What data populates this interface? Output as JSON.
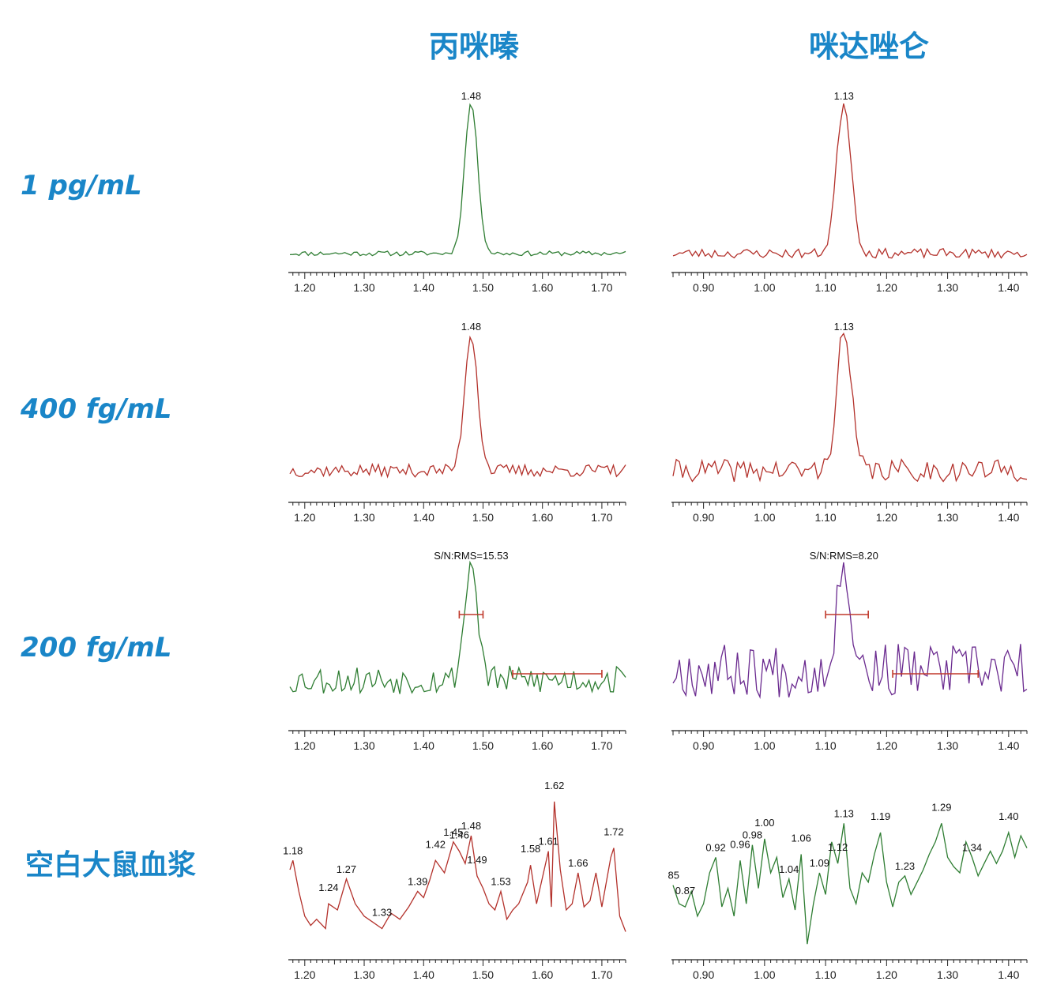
{
  "column_titles": [
    "丙咪嗪",
    "咪达唑仑"
  ],
  "row_labels": [
    "1 pg/mL",
    "400 fg/mL",
    "200 fg/mL",
    "空白大鼠血浆"
  ],
  "chart_data": [
    {
      "type": "line",
      "row": "1 pg/mL",
      "compound": "丙咪嗪",
      "color": "#2e7d32",
      "xlim": [
        1.175,
        1.74
      ],
      "xticks": [
        1.2,
        1.3,
        1.4,
        1.5,
        1.6,
        1.7
      ],
      "xtick_labels": [
        "1.20",
        "1.30",
        "1.40",
        "1.50",
        "1.60",
        "1.70"
      ],
      "peak": {
        "x": 1.48,
        "width": 0.011,
        "noise": 0.015,
        "baseline": 0.06,
        "seed": 11
      },
      "annotations": [
        {
          "text": "1.48",
          "x": 1.48
        }
      ]
    },
    {
      "type": "line",
      "row": "1 pg/mL",
      "compound": "咪达唑仑",
      "color": "#b3312b",
      "xlim": [
        0.85,
        1.43
      ],
      "xticks": [
        0.9,
        1.0,
        1.1,
        1.2,
        1.3,
        1.4
      ],
      "xtick_labels": [
        "0.90",
        "1.00",
        "1.10",
        "1.20",
        "1.30",
        "1.40"
      ],
      "peak": {
        "x": 1.13,
        "width": 0.012,
        "noise": 0.03,
        "baseline": 0.06,
        "seed": 23
      },
      "annotations": [
        {
          "text": "1.13",
          "x": 1.13
        }
      ]
    },
    {
      "type": "line",
      "row": "400 fg/mL",
      "compound": "丙咪嗪",
      "color": "#b3312b",
      "xlim": [
        1.175,
        1.74
      ],
      "xticks": [
        1.2,
        1.3,
        1.4,
        1.5,
        1.6,
        1.7
      ],
      "xtick_labels": [
        "1.20",
        "1.30",
        "1.40",
        "1.50",
        "1.60",
        "1.70"
      ],
      "peak": {
        "x": 1.48,
        "width": 0.011,
        "noise": 0.04,
        "baseline": 0.14,
        "seed": 37
      },
      "annotations": [
        {
          "text": "1.48",
          "x": 1.48
        }
      ]
    },
    {
      "type": "line",
      "row": "400 fg/mL",
      "compound": "咪达唑仑",
      "color": "#b3312b",
      "xlim": [
        0.85,
        1.43
      ],
      "xticks": [
        0.9,
        1.0,
        1.1,
        1.2,
        1.3,
        1.4
      ],
      "xtick_labels": [
        "0.90",
        "1.00",
        "1.10",
        "1.20",
        "1.30",
        "1.40"
      ],
      "peak": {
        "x": 1.13,
        "width": 0.012,
        "noise": 0.07,
        "baseline": 0.14,
        "seed": 41
      },
      "annotations": [
        {
          "text": "1.13",
          "x": 1.13
        }
      ]
    },
    {
      "type": "line",
      "row": "200 fg/mL",
      "compound": "丙咪嗪",
      "color": "#2e7d32",
      "xlim": [
        1.175,
        1.74
      ],
      "xticks": [
        1.2,
        1.3,
        1.4,
        1.5,
        1.6,
        1.7
      ],
      "xtick_labels": [
        "1.20",
        "1.30",
        "1.40",
        "1.50",
        "1.60",
        "1.70"
      ],
      "peak": {
        "x": 1.48,
        "width": 0.011,
        "noise": 0.09,
        "baseline": 0.26,
        "seed": 53
      },
      "annotations": [
        {
          "text": "S/N:RMS=15.53",
          "x": 1.48
        }
      ],
      "signal_range": [
        1.46,
        1.5
      ],
      "noise_range": [
        1.55,
        1.7
      ]
    },
    {
      "type": "line",
      "row": "200 fg/mL",
      "compound": "咪达唑仑",
      "color": "#6a2a8f",
      "xlim": [
        0.85,
        1.43
      ],
      "xticks": [
        0.9,
        1.0,
        1.1,
        1.2,
        1.3,
        1.4
      ],
      "xtick_labels": [
        "0.90",
        "1.00",
        "1.10",
        "1.20",
        "1.30",
        "1.40"
      ],
      "peak": {
        "x": 1.13,
        "width": 0.012,
        "noise": 0.17,
        "baseline": 0.32,
        "seed": 67
      },
      "annotations": [
        {
          "text": "S/N:RMS=8.20",
          "x": 1.13
        }
      ],
      "signal_range": [
        1.1,
        1.17
      ],
      "noise_range": [
        1.21,
        1.35
      ]
    },
    {
      "type": "line",
      "row": "空白大鼠血浆",
      "compound": "丙咪嗪",
      "color": "#b3312b",
      "xlim": [
        1.175,
        1.74
      ],
      "xticks": [
        1.2,
        1.3,
        1.4,
        1.5,
        1.6,
        1.7
      ],
      "xtick_labels": [
        "1.20",
        "1.30",
        "1.40",
        "1.50",
        "1.60",
        "1.70"
      ],
      "points": [
        [
          1.175,
          0.52
        ],
        [
          1.18,
          0.58
        ],
        [
          1.19,
          0.38
        ],
        [
          1.2,
          0.22
        ],
        [
          1.21,
          0.16
        ],
        [
          1.22,
          0.2
        ],
        [
          1.235,
          0.14
        ],
        [
          1.24,
          0.3
        ],
        [
          1.255,
          0.26
        ],
        [
          1.27,
          0.46
        ],
        [
          1.285,
          0.3
        ],
        [
          1.3,
          0.22
        ],
        [
          1.315,
          0.18
        ],
        [
          1.33,
          0.14
        ],
        [
          1.345,
          0.24
        ],
        [
          1.36,
          0.2
        ],
        [
          1.375,
          0.28
        ],
        [
          1.39,
          0.38
        ],
        [
          1.4,
          0.34
        ],
        [
          1.41,
          0.45
        ],
        [
          1.42,
          0.58
        ],
        [
          1.435,
          0.5
        ],
        [
          1.45,
          0.7
        ],
        [
          1.46,
          0.64
        ],
        [
          1.47,
          0.56
        ],
        [
          1.48,
          0.74
        ],
        [
          1.49,
          0.48
        ],
        [
          1.5,
          0.4
        ],
        [
          1.51,
          0.3
        ],
        [
          1.52,
          0.26
        ],
        [
          1.53,
          0.38
        ],
        [
          1.54,
          0.2
        ],
        [
          1.55,
          0.26
        ],
        [
          1.56,
          0.3
        ],
        [
          1.575,
          0.44
        ],
        [
          1.58,
          0.55
        ],
        [
          1.59,
          0.3
        ],
        [
          1.61,
          0.64
        ],
        [
          1.615,
          0.28
        ],
        [
          1.62,
          0.96
        ],
        [
          1.63,
          0.52
        ],
        [
          1.64,
          0.26
        ],
        [
          1.65,
          0.3
        ],
        [
          1.66,
          0.5
        ],
        [
          1.67,
          0.28
        ],
        [
          1.68,
          0.32
        ],
        [
          1.69,
          0.5
        ],
        [
          1.7,
          0.28
        ],
        [
          1.715,
          0.6
        ],
        [
          1.72,
          0.66
        ],
        [
          1.73,
          0.22
        ],
        [
          1.74,
          0.12
        ]
      ],
      "annotations": [
        {
          "text": "1.18",
          "x": 1.18
        },
        {
          "text": "1.24",
          "x": 1.24
        },
        {
          "text": "1.27",
          "x": 1.27
        },
        {
          "text": "1.33",
          "x": 1.33
        },
        {
          "text": "1.39",
          "x": 1.39
        },
        {
          "text": "1.42",
          "x": 1.42
        },
        {
          "text": "1.45",
          "x": 1.45
        },
        {
          "text": "1.46",
          "x": 1.46
        },
        {
          "text": "1.48",
          "x": 1.48
        },
        {
          "text": "1.49",
          "x": 1.49
        },
        {
          "text": "1.53",
          "x": 1.53
        },
        {
          "text": "1.58",
          "x": 1.58
        },
        {
          "text": "1.61",
          "x": 1.61
        },
        {
          "text": "1.62",
          "x": 1.62
        },
        {
          "text": "1.66",
          "x": 1.66
        },
        {
          "text": "1.72",
          "x": 1.72
        }
      ]
    },
    {
      "type": "line",
      "row": "空白大鼠血浆",
      "compound": "咪达唑仑",
      "color": "#2e7d32",
      "xlim": [
        0.85,
        1.43
      ],
      "xticks": [
        0.9,
        1.0,
        1.1,
        1.2,
        1.3,
        1.4
      ],
      "xtick_labels": [
        "0.90",
        "1.00",
        "1.10",
        "1.20",
        "1.30",
        "1.40"
      ],
      "points": [
        [
          0.85,
          0.42
        ],
        [
          0.86,
          0.3
        ],
        [
          0.87,
          0.28
        ],
        [
          0.88,
          0.38
        ],
        [
          0.89,
          0.22
        ],
        [
          0.9,
          0.3
        ],
        [
          0.91,
          0.5
        ],
        [
          0.92,
          0.6
        ],
        [
          0.93,
          0.28
        ],
        [
          0.94,
          0.4
        ],
        [
          0.95,
          0.22
        ],
        [
          0.96,
          0.58
        ],
        [
          0.97,
          0.3
        ],
        [
          0.98,
          0.68
        ],
        [
          0.99,
          0.4
        ],
        [
          1.0,
          0.72
        ],
        [
          1.01,
          0.5
        ],
        [
          1.02,
          0.6
        ],
        [
          1.03,
          0.34
        ],
        [
          1.04,
          0.46
        ],
        [
          1.05,
          0.26
        ],
        [
          1.06,
          0.62
        ],
        [
          1.07,
          0.04
        ],
        [
          1.08,
          0.3
        ],
        [
          1.09,
          0.5
        ],
        [
          1.1,
          0.36
        ],
        [
          1.11,
          0.7
        ],
        [
          1.12,
          0.56
        ],
        [
          1.13,
          0.82
        ],
        [
          1.14,
          0.4
        ],
        [
          1.15,
          0.3
        ],
        [
          1.16,
          0.5
        ],
        [
          1.17,
          0.44
        ],
        [
          1.18,
          0.62
        ],
        [
          1.19,
          0.76
        ],
        [
          1.2,
          0.44
        ],
        [
          1.21,
          0.28
        ],
        [
          1.22,
          0.44
        ],
        [
          1.23,
          0.48
        ],
        [
          1.24,
          0.36
        ],
        [
          1.25,
          0.44
        ],
        [
          1.26,
          0.52
        ],
        [
          1.27,
          0.62
        ],
        [
          1.28,
          0.7
        ],
        [
          1.29,
          0.82
        ],
        [
          1.3,
          0.6
        ],
        [
          1.31,
          0.54
        ],
        [
          1.32,
          0.5
        ],
        [
          1.33,
          0.7
        ],
        [
          1.34,
          0.6
        ],
        [
          1.35,
          0.48
        ],
        [
          1.36,
          0.56
        ],
        [
          1.37,
          0.64
        ],
        [
          1.38,
          0.56
        ],
        [
          1.39,
          0.64
        ],
        [
          1.4,
          0.76
        ],
        [
          1.41,
          0.6
        ],
        [
          1.42,
          0.74
        ],
        [
          1.43,
          0.66
        ]
      ],
      "annotations": [
        {
          "text": "85",
          "x": 0.851
        },
        {
          "text": "0.87",
          "x": 0.87
        },
        {
          "text": "0.92",
          "x": 0.92
        },
        {
          "text": "0.96",
          "x": 0.96
        },
        {
          "text": "0.98",
          "x": 0.98
        },
        {
          "text": "1.00",
          "x": 1.0
        },
        {
          "text": "1.04",
          "x": 1.04
        },
        {
          "text": "1.06",
          "x": 1.06
        },
        {
          "text": "1.09",
          "x": 1.09
        },
        {
          "text": "1.12",
          "x": 1.12
        },
        {
          "text": "1.13",
          "x": 1.13
        },
        {
          "text": "1.19",
          "x": 1.19
        },
        {
          "text": "1.23",
          "x": 1.23
        },
        {
          "text": "1.29",
          "x": 1.29
        },
        {
          "text": "1.34",
          "x": 1.34
        },
        {
          "text": "1.40",
          "x": 1.4
        }
      ]
    }
  ]
}
